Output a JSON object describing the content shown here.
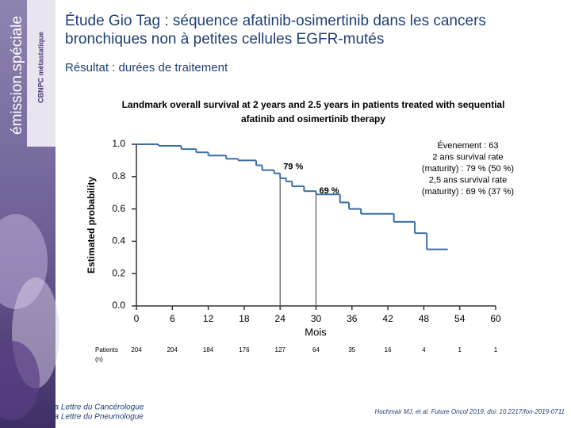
{
  "sidebar": {
    "brand": "émission.spéciale",
    "topic": "CBNPC métastatique"
  },
  "header": {
    "title_lines": [
      "Étude Gio Tag : séquence afatinib-osimertinib dans les cancers",
      "bronchiques non à petites cellules EGFR-mutés"
    ],
    "subtitle": "Résultat : durées de traitement"
  },
  "chart_data": {
    "type": "step",
    "title_lines": [
      "Landmark overall survival at 2 years and 2.5 years in patients treated with sequential",
      "afatinib and osimertinib therapy"
    ],
    "x_label": "Mois",
    "y_label": "Estimated probability",
    "color": "#3a6ea5",
    "x": [
      0,
      3.7,
      7.5,
      10,
      12,
      15,
      17,
      20,
      21,
      23,
      24,
      25,
      26,
      28,
      30,
      34,
      35.5,
      37.5,
      43,
      46.5,
      48.5,
      52
    ],
    "values": [
      1,
      0.99,
      0.97,
      0.95,
      0.93,
      0.91,
      0.9,
      0.87,
      0.84,
      0.82,
      0.79,
      0.77,
      0.74,
      0.71,
      0.69,
      0.64,
      0.6,
      0.57,
      0.52,
      0.45,
      0.35,
      0.35
    ],
    "xlim": [
      0,
      60
    ],
    "xticks": [
      0,
      6,
      12,
      18,
      24,
      30,
      36,
      42,
      48,
      54,
      60
    ],
    "ylim": [
      0,
      1
    ],
    "yticks": [
      {
        "value": 0,
        "label": "0.0"
      },
      0.2,
      0.4,
      0.6,
      0.8,
      {
        "value": 1,
        "label": "1.0"
      }
    ],
    "annotations": [
      {
        "text": "79 %",
        "x": 24,
        "y": 0.79
      },
      {
        "text": "69 %",
        "x": 30,
        "y": 0.69
      }
    ],
    "note_lines": [
      "Évenement : 63",
      "2 ans survival rate",
      "(maturity) : 79 % (50 %)",
      "2,5 ans survival rate",
      "(maturity) : 69 % (37 %)"
    ],
    "risk_table": {
      "label_lines": [
        "Patients",
        "(n)"
      ],
      "values": [
        204,
        204,
        184,
        176,
        127,
        64,
        35,
        16,
        4,
        1,
        1
      ]
    }
  },
  "footer": {
    "source_lines": [
      "La Lettre du Cancérologue",
      "La Lettre du Pneumologue"
    ],
    "citation": "Hochmair MJ, et al. Future Oncol 2019; doi: 10.2217/fon-2019-0711"
  }
}
